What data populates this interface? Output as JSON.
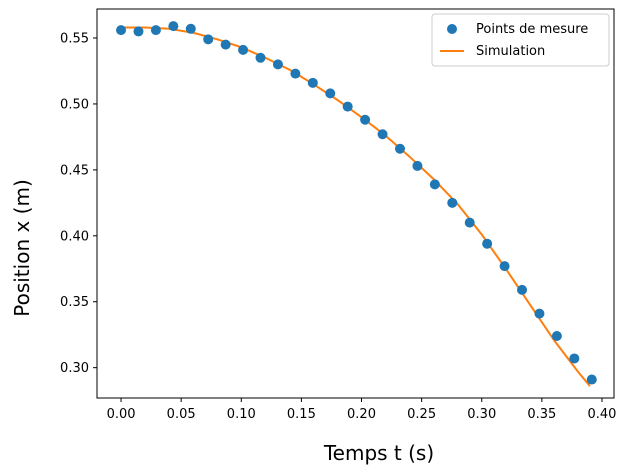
{
  "chart_data": {
    "type": "scatter+line",
    "xlabel": "Temps t (s)",
    "ylabel": "Position x (m)",
    "xlim": [
      -0.02,
      0.41
    ],
    "ylim": [
      0.277,
      0.572
    ],
    "xticks": [
      0.0,
      0.05,
      0.1,
      0.15,
      0.2,
      0.25,
      0.3,
      0.35,
      0.4
    ],
    "xtick_labels": [
      "0.00",
      "0.05",
      "0.10",
      "0.15",
      "0.20",
      "0.25",
      "0.30",
      "0.35",
      "0.40"
    ],
    "yticks": [
      0.3,
      0.35,
      0.4,
      0.45,
      0.5,
      0.55
    ],
    "ytick_labels": [
      "0.30",
      "0.35",
      "0.40",
      "0.45",
      "0.50",
      "0.55"
    ],
    "grid": false,
    "legend_position": "top-right",
    "series": [
      {
        "name": "Points de mesure",
        "kind": "scatter",
        "color": "#1f77b4",
        "x": [
          0.0,
          0.0145,
          0.029,
          0.0435,
          0.058,
          0.0725,
          0.087,
          0.1015,
          0.116,
          0.1305,
          0.145,
          0.1595,
          0.174,
          0.1885,
          0.203,
          0.2175,
          0.232,
          0.2465,
          0.261,
          0.2755,
          0.29,
          0.3045,
          0.319,
          0.3335,
          0.348,
          0.3625,
          0.377,
          0.3915
        ],
        "y": [
          0.556,
          0.555,
          0.556,
          0.559,
          0.557,
          0.549,
          0.545,
          0.541,
          0.535,
          0.53,
          0.523,
          0.516,
          0.508,
          0.498,
          0.488,
          0.477,
          0.466,
          0.453,
          0.439,
          0.425,
          0.41,
          0.394,
          0.377,
          0.359,
          0.341,
          0.324,
          0.307,
          0.291
        ]
      },
      {
        "name": "Simulation",
        "kind": "line",
        "color": "#ff7f0e",
        "x": [
          0.0,
          0.02,
          0.04,
          0.06,
          0.08,
          0.1,
          0.12,
          0.14,
          0.16,
          0.18,
          0.2,
          0.22,
          0.24,
          0.26,
          0.28,
          0.3,
          0.32,
          0.34,
          0.36,
          0.38,
          0.39
        ],
        "y": [
          0.558,
          0.558,
          0.557,
          0.554,
          0.549,
          0.543,
          0.535,
          0.526,
          0.515,
          0.503,
          0.49,
          0.476,
          0.46,
          0.443,
          0.424,
          0.401,
          0.375,
          0.348,
          0.321,
          0.297,
          0.286
        ]
      }
    ]
  }
}
